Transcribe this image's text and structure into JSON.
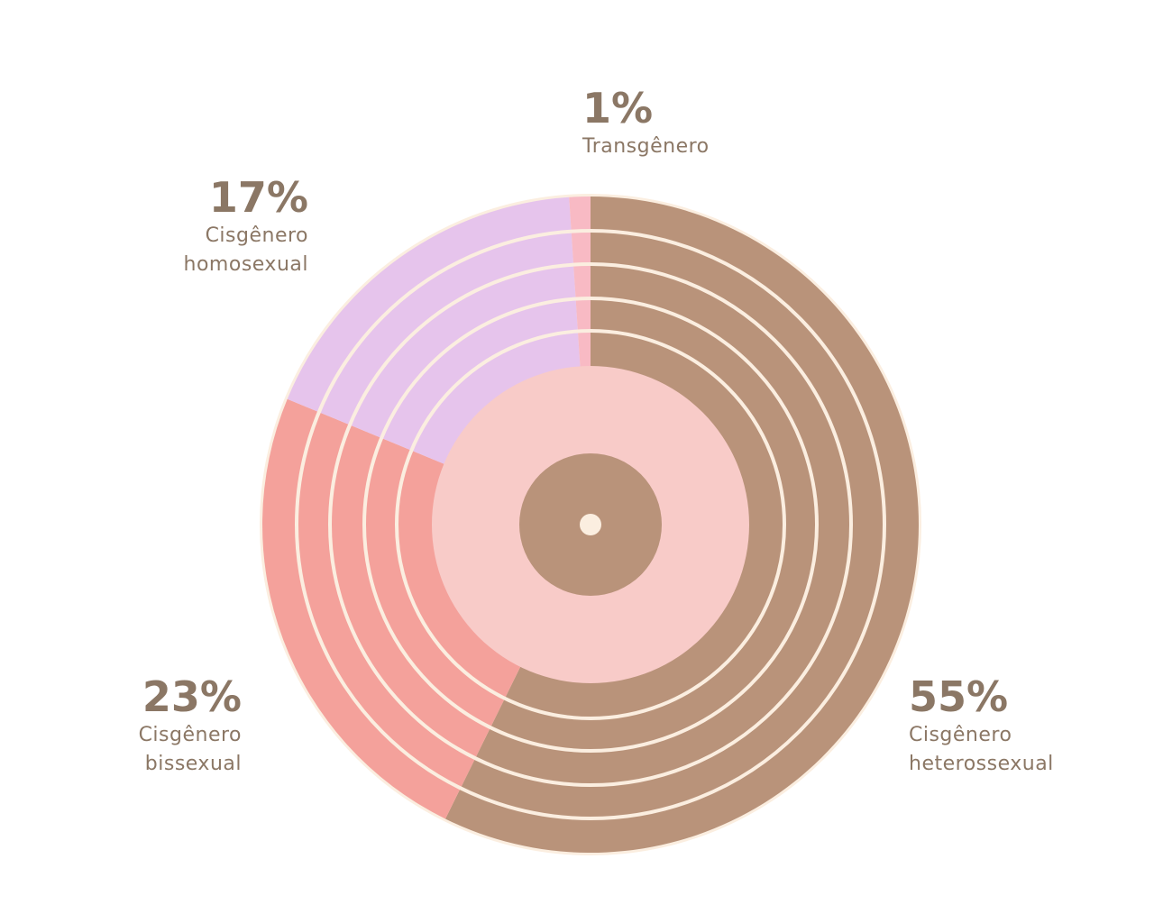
{
  "chart_data": {
    "type": "pie",
    "categories": [
      "Cisgênero heterossexual",
      "Cisgênero bissexual",
      "Cisgênero homosexual",
      "Transgênero"
    ],
    "values": [
      55,
      23,
      17,
      1
    ],
    "value_labels": [
      "55%",
      "23%",
      "17%",
      "1%"
    ],
    "colors": [
      "#b9937a",
      "#f4a19b",
      "#e6c4ec",
      "#f8bac4"
    ]
  }
}
